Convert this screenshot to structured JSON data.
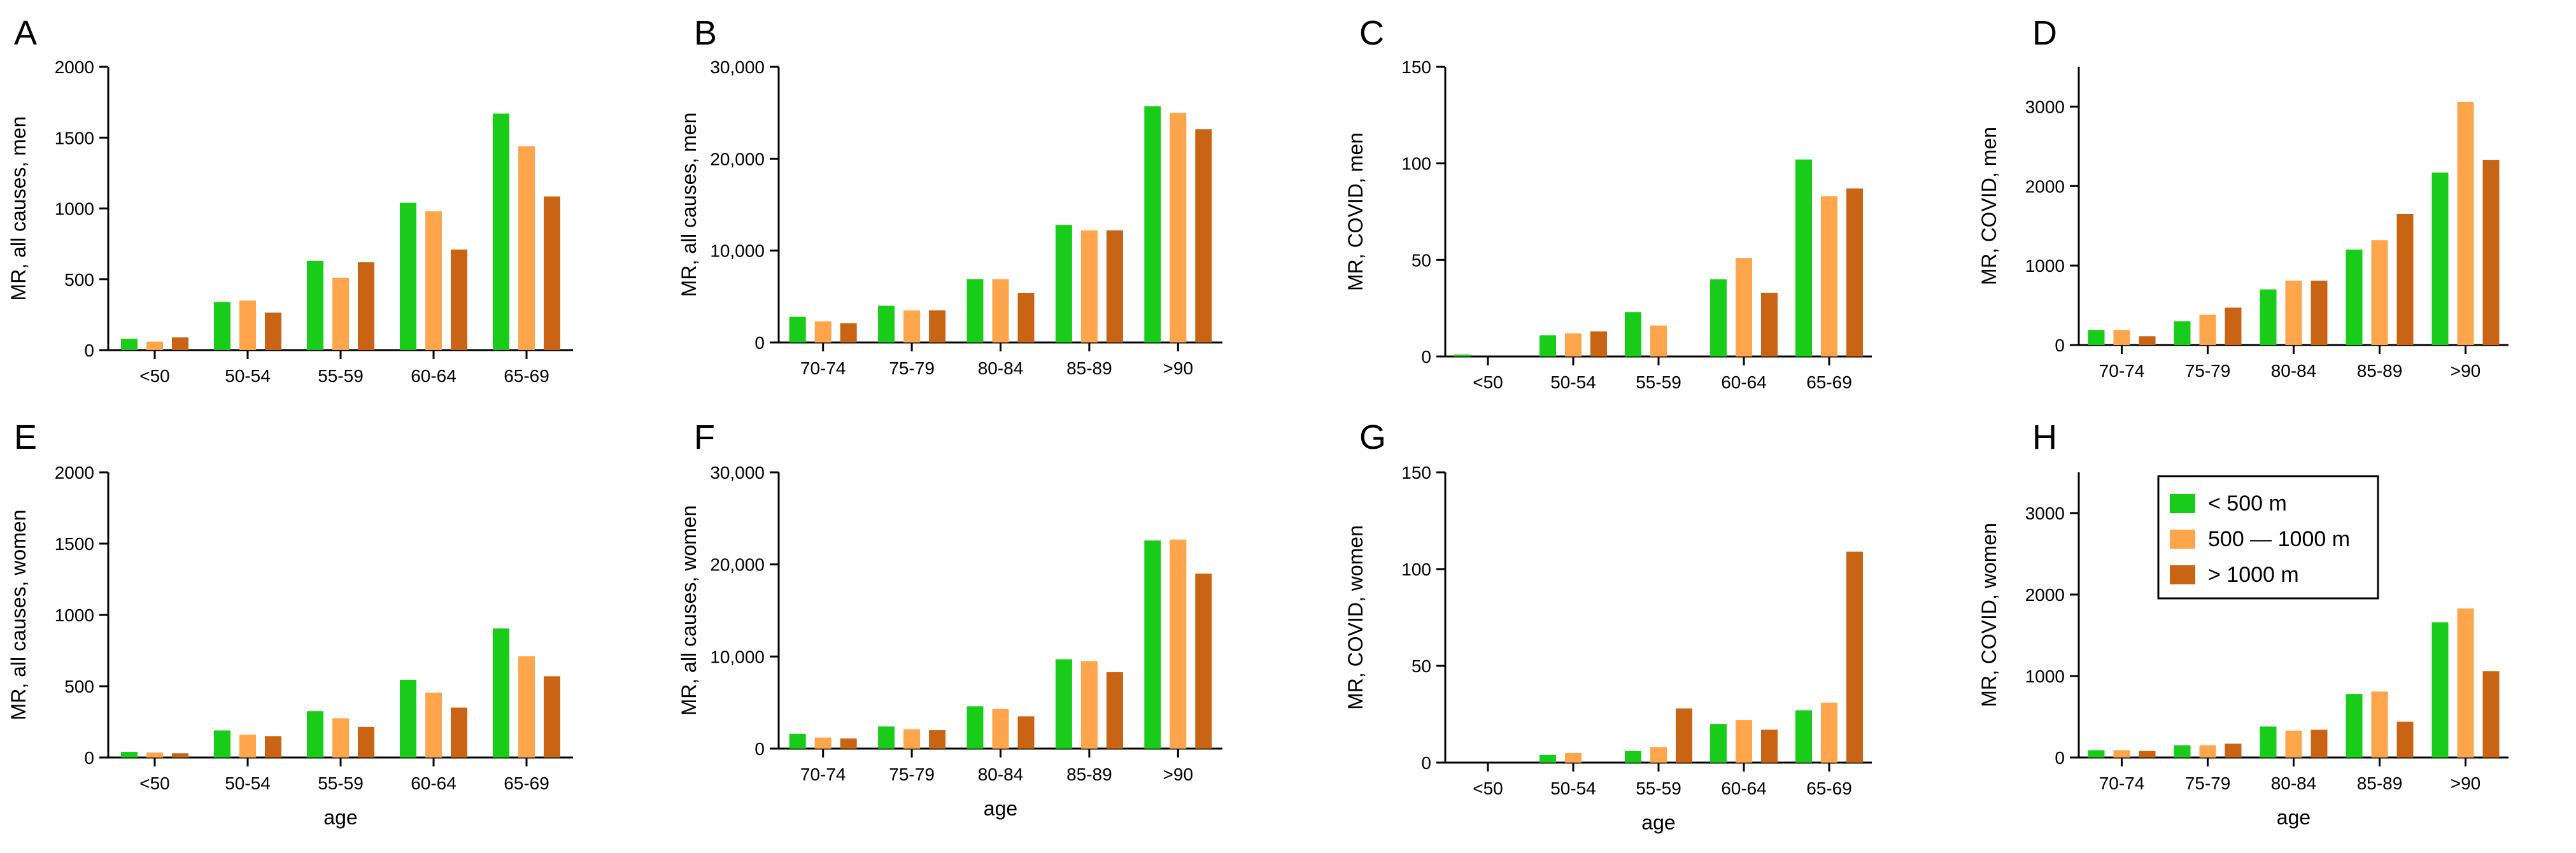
{
  "colors": {
    "lt500": "#19cc19",
    "mid": "#ffa64d",
    "gt1000": "#c86414",
    "axis": "#000000"
  },
  "legend": {
    "entries": [
      {
        "key": "lt500",
        "label": "< 500 m"
      },
      {
        "key": "mid",
        "label": "500 — 1000 m"
      },
      {
        "key": "gt1000",
        "label": "> 1000 m"
      }
    ]
  },
  "chart_data": [
    {
      "panel": "A",
      "type": "bar",
      "ylabel": "MR, all causes, men",
      "xlabel": "",
      "ylim": [
        0,
        2000
      ],
      "yticks": [
        "0",
        "500",
        "1000",
        "1500",
        "2000"
      ],
      "categories": [
        "<50",
        "50-54",
        "55-59",
        "60-64",
        "65-69"
      ],
      "series": [
        {
          "key": "lt500",
          "name": "< 500 m",
          "values": [
            80,
            340,
            630,
            1040,
            1670
          ]
        },
        {
          "key": "mid",
          "name": "500 — 1000 m",
          "values": [
            60,
            350,
            510,
            980,
            1440
          ]
        },
        {
          "key": "gt1000",
          "name": "> 1000 m",
          "values": [
            90,
            265,
            620,
            710,
            1085
          ]
        }
      ]
    },
    {
      "panel": "B",
      "type": "bar",
      "ylabel": "MR, all causes, men",
      "xlabel": "",
      "ylim": [
        0,
        30000
      ],
      "yticks": [
        "0",
        "10,000",
        "20,000",
        "30,000"
      ],
      "categories": [
        "70-74",
        "75-79",
        "80-84",
        "85-89",
        ">90"
      ],
      "series": [
        {
          "key": "lt500",
          "name": "< 500 m",
          "values": [
            2800,
            4000,
            6900,
            12800,
            25700
          ]
        },
        {
          "key": "mid",
          "name": "500 — 1000 m",
          "values": [
            2300,
            3500,
            6900,
            12200,
            25000
          ]
        },
        {
          "key": "gt1000",
          "name": "> 1000 m",
          "values": [
            2100,
            3500,
            5400,
            12200,
            23200
          ]
        }
      ]
    },
    {
      "panel": "C",
      "type": "bar",
      "ylabel": "MR, COVID, men",
      "xlabel": "",
      "ylim": [
        0,
        150
      ],
      "yticks": [
        "0",
        "50",
        "100",
        "150"
      ],
      "categories": [
        "<50",
        "50-54",
        "55-59",
        "60-64",
        "65-69"
      ],
      "series": [
        {
          "key": "lt500",
          "name": "< 500 m",
          "values": [
            1,
            11,
            23,
            40,
            102
          ]
        },
        {
          "key": "mid",
          "name": "500 — 1000 m",
          "values": [
            0,
            12,
            16,
            51,
            83
          ]
        },
        {
          "key": "gt1000",
          "name": "> 1000 m",
          "values": [
            0,
            13,
            0,
            33,
            87
          ]
        }
      ]
    },
    {
      "panel": "D",
      "type": "bar",
      "ylabel": "MR, COVID, men",
      "xlabel": "",
      "ylim": [
        0,
        3500
      ],
      "yticks": [
        "0",
        "1000",
        "2000",
        "3000"
      ],
      "categories": [
        "70-74",
        "75-79",
        "80-84",
        "85-89",
        ">90"
      ],
      "series": [
        {
          "key": "lt500",
          "name": "< 500 m",
          "values": [
            190,
            300,
            700,
            1200,
            2170
          ]
        },
        {
          "key": "mid",
          "name": "500 — 1000 m",
          "values": [
            190,
            380,
            810,
            1320,
            3060
          ]
        },
        {
          "key": "gt1000",
          "name": "> 1000 m",
          "values": [
            110,
            470,
            810,
            1650,
            2330
          ]
        }
      ]
    },
    {
      "panel": "E",
      "type": "bar",
      "ylabel": "MR, all causes, women",
      "xlabel": "age",
      "ylim": [
        0,
        2000
      ],
      "yticks": [
        "0",
        "500",
        "1000",
        "1500",
        "2000"
      ],
      "categories": [
        "<50",
        "50-54",
        "55-59",
        "60-64",
        "65-69"
      ],
      "series": [
        {
          "key": "lt500",
          "name": "< 500 m",
          "values": [
            40,
            190,
            325,
            545,
            905
          ]
        },
        {
          "key": "mid",
          "name": "500 — 1000 m",
          "values": [
            35,
            160,
            275,
            455,
            710
          ]
        },
        {
          "key": "gt1000",
          "name": "> 1000 m",
          "values": [
            30,
            150,
            215,
            350,
            570
          ]
        }
      ]
    },
    {
      "panel": "F",
      "type": "bar",
      "ylabel": "MR, all causes, women",
      "xlabel": "age",
      "ylim": [
        0,
        30000
      ],
      "yticks": [
        "0",
        "10,000",
        "20,000",
        "30,000"
      ],
      "categories": [
        "70-74",
        "75-79",
        "80-84",
        "85-89",
        ">90"
      ],
      "series": [
        {
          "key": "lt500",
          "name": "< 500 m",
          "values": [
            1600,
            2400,
            4600,
            9700,
            22600
          ]
        },
        {
          "key": "mid",
          "name": "500 — 1000 m",
          "values": [
            1200,
            2100,
            4300,
            9500,
            22700
          ]
        },
        {
          "key": "gt1000",
          "name": "> 1000 m",
          "values": [
            1100,
            2000,
            3500,
            8300,
            19000
          ]
        }
      ]
    },
    {
      "panel": "G",
      "type": "bar",
      "ylabel": "MR, COVID, women",
      "xlabel": "age",
      "ylim": [
        0,
        150
      ],
      "yticks": [
        "0",
        "50",
        "100",
        "150"
      ],
      "categories": [
        "<50",
        "50-54",
        "55-59",
        "60-64",
        "65-69"
      ],
      "series": [
        {
          "key": "lt500",
          "name": "< 500 m",
          "values": [
            0,
            4,
            6,
            20,
            27
          ]
        },
        {
          "key": "mid",
          "name": "500 — 1000 m",
          "values": [
            0,
            5,
            8,
            22,
            31
          ]
        },
        {
          "key": "gt1000",
          "name": "> 1000 m",
          "values": [
            0,
            0,
            28,
            17,
            109
          ]
        }
      ]
    },
    {
      "panel": "H",
      "type": "bar",
      "ylabel": "MR, COVID, women",
      "xlabel": "age",
      "ylim": [
        0,
        3500
      ],
      "yticks": [
        "0",
        "1000",
        "2000",
        "3000"
      ],
      "categories": [
        "70-74",
        "75-79",
        "80-84",
        "85-89",
        ">90"
      ],
      "legend": true,
      "series": [
        {
          "key": "lt500",
          "name": "< 500 m",
          "values": [
            90,
            150,
            380,
            780,
            1660
          ]
        },
        {
          "key": "mid",
          "name": "500 — 1000 m",
          "values": [
            90,
            150,
            330,
            810,
            1830
          ]
        },
        {
          "key": "gt1000",
          "name": "> 1000 m",
          "values": [
            80,
            170,
            340,
            440,
            1060
          ]
        }
      ]
    }
  ]
}
